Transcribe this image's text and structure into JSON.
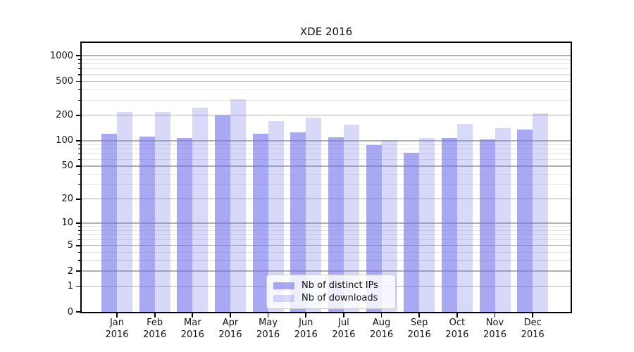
{
  "title": "XDE 2016",
  "colors": {
    "bar_distinct_ips": "#aaaaf3",
    "bar_downloads": "#d9d9f8",
    "bar_fill_dark": "rgba(115,115,235,0.62)",
    "bar_fill_light": "rgba(115,115,235,0.28)",
    "grid_major": "#b0b0b0",
    "grid_minor": "#e4e4e4",
    "axis": "#000000",
    "text": "#141414"
  },
  "legend": {
    "items": [
      {
        "label": "Nb of distinct IPs"
      },
      {
        "label": "Nb of downloads"
      }
    ]
  },
  "chart_data": {
    "type": "bar",
    "title": "XDE 2016",
    "categories": [
      "Jan 2016",
      "Feb 2016",
      "Mar 2016",
      "Apr 2016",
      "May 2016",
      "Jun 2016",
      "Jul 2016",
      "Aug 2016",
      "Sep 2016",
      "Oct 2016",
      "Nov 2016",
      "Dec 2016"
    ],
    "category_line1": [
      "Jan",
      "Feb",
      "Mar",
      "Apr",
      "May",
      "Jun",
      "Jul",
      "Aug",
      "Sep",
      "Oct",
      "Nov",
      "Dec"
    ],
    "category_line2": [
      "2016",
      "2016",
      "2016",
      "2016",
      "2016",
      "2016",
      "2016",
      "2016",
      "2016",
      "2016",
      "2016",
      "2016"
    ],
    "series": [
      {
        "name": "Nb of distinct IPs",
        "values": [
          122,
          112,
          108,
          199,
          120,
          126,
          110,
          89,
          72,
          107,
          104,
          136
        ]
      },
      {
        "name": "Nb of downloads",
        "values": [
          218,
          217,
          245,
          308,
          170,
          189,
          154,
          101,
          107,
          157,
          141,
          212
        ]
      }
    ],
    "xlabel": "",
    "ylabel": "",
    "yscale": "log10(value+1)",
    "ylim": [
      0,
      1465
    ],
    "yticks_major": [
      0,
      1,
      2,
      5,
      10,
      20,
      50,
      100,
      200,
      500,
      1000
    ],
    "yticks_minor": [
      3,
      4,
      6,
      7,
      8,
      9,
      30,
      40,
      60,
      70,
      80,
      90,
      300,
      400,
      600,
      700,
      800,
      900
    ],
    "grid": true,
    "legend_position": "lower center"
  }
}
